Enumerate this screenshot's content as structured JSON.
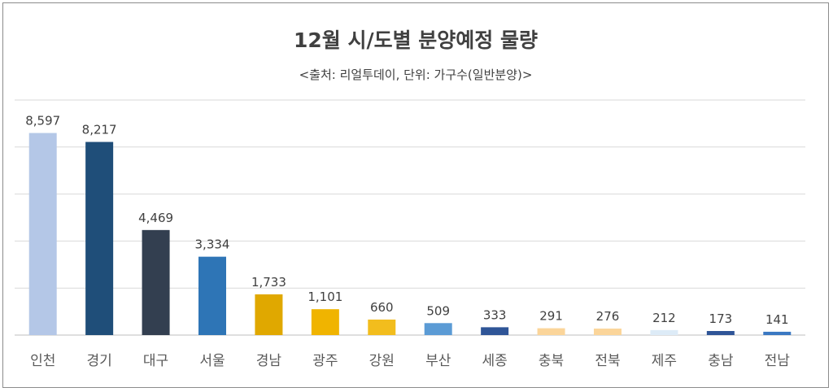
{
  "chart_data": {
    "type": "bar",
    "title": "12월 시/도별 분양예정 물량",
    "subtitle": "<출처: 리얼투데이, 단위: 가구수(일반분양)>",
    "categories": [
      "인천",
      "경기",
      "대구",
      "서울",
      "경남",
      "광주",
      "강원",
      "부산",
      "세종",
      "충북",
      "전북",
      "제주",
      "충남",
      "전남"
    ],
    "values": [
      8597,
      8217,
      4469,
      3334,
      1733,
      1101,
      660,
      509,
      333,
      291,
      276,
      212,
      173,
      141
    ],
    "value_labels": [
      "8,597",
      "8,217",
      "4,469",
      "3,334",
      "1,733",
      "1,101",
      "660",
      "509",
      "333",
      "291",
      "276",
      "212",
      "173",
      "141"
    ],
    "bar_colors": [
      "#b4c7e7",
      "#1f4e79",
      "#333f50",
      "#2e75b6",
      "#e0a800",
      "#f0b400",
      "#f2bd1d",
      "#5b9bd5",
      "#2f5597",
      "#fbd59a",
      "#fbd59a",
      "#ddebf7",
      "#2f5597",
      "#3a78c2"
    ],
    "ylim": [
      0,
      10000
    ],
    "grid": true,
    "xlabel": "",
    "ylabel": "",
    "legend": "none"
  }
}
